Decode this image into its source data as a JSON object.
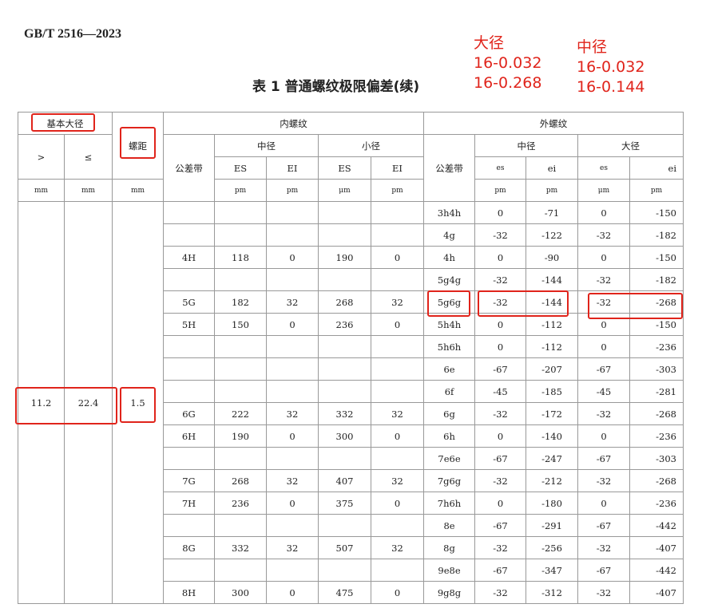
{
  "standard": "GB/T  2516—2023",
  "title": "表 1  普通螺纹极限偏差(续)",
  "notes": [
    {
      "heading": "大径",
      "lines": [
        "16-0.032",
        "16-0.268"
      ]
    },
    {
      "heading": "中径",
      "lines": [
        "16-0.032",
        "16-0.144"
      ]
    }
  ],
  "header": {
    "basic_diameter": "基本大径",
    "gt": ">",
    "le": "≤",
    "pitch": "螺距",
    "internal": "内螺纹",
    "external": "外螺纹",
    "tolerance_zone": "公差带",
    "pitch_dia": "中径",
    "minor_dia": "小径",
    "major_dia": "大径",
    "ES": "ES",
    "EI": "EI",
    "es": "es",
    "ei": "ei",
    "unit_mm": "mm",
    "unit_um": "pm",
    "unit_mu": "μm"
  },
  "group": {
    "gt": "11.2",
    "le": "22.4",
    "pitch": "1.5"
  },
  "rows": [
    {
      "inner": null,
      "outer": [
        "3h4h",
        "0",
        "-71",
        "0",
        "-150"
      ]
    },
    {
      "inner": null,
      "outer": [
        "4g",
        "-32",
        "-122",
        "-32",
        "-182"
      ]
    },
    {
      "inner": [
        "4H",
        "118",
        "0",
        "190",
        "0"
      ],
      "outer": [
        "4h",
        "0",
        "-90",
        "0",
        "-150"
      ]
    },
    {
      "inner": null,
      "outer": [
        "5g4g",
        "-32",
        "-144",
        "-32",
        "-182"
      ]
    },
    {
      "inner": [
        "5G",
        "182",
        "32",
        "268",
        "32"
      ],
      "outer": [
        "5g6g",
        "-32",
        "-144",
        "-32",
        "-268"
      ]
    },
    {
      "inner": [
        "5H",
        "150",
        "0",
        "236",
        "0"
      ],
      "outer": [
        "5h4h",
        "0",
        "-112",
        "0",
        "-150"
      ]
    },
    {
      "inner": null,
      "outer": [
        "5h6h",
        "0",
        "-112",
        "0",
        "-236"
      ]
    },
    {
      "inner": null,
      "outer": [
        "6e",
        "-67",
        "-207",
        "-67",
        "-303"
      ]
    },
    {
      "inner": null,
      "outer": [
        "6f",
        "-45",
        "-185",
        "-45",
        "-281"
      ]
    },
    {
      "inner": [
        "6G",
        "222",
        "32",
        "332",
        "32"
      ],
      "outer": [
        "6g",
        "-32",
        "-172",
        "-32",
        "-268"
      ]
    },
    {
      "inner": [
        "6H",
        "190",
        "0",
        "300",
        "0"
      ],
      "outer": [
        "6h",
        "0",
        "-140",
        "0",
        "-236"
      ]
    },
    {
      "inner": null,
      "outer": [
        "7e6e",
        "-67",
        "-247",
        "-67",
        "-303"
      ]
    },
    {
      "inner": [
        "7G",
        "268",
        "32",
        "407",
        "32"
      ],
      "outer": [
        "7g6g",
        "-32",
        "-212",
        "-32",
        "-268"
      ]
    },
    {
      "inner": [
        "7H",
        "236",
        "0",
        "375",
        "0"
      ],
      "outer": [
        "7h6h",
        "0",
        "-180",
        "0",
        "-236"
      ]
    },
    {
      "inner": null,
      "outer": [
        "8e",
        "-67",
        "-291",
        "-67",
        "-442"
      ]
    },
    {
      "inner": [
        "8G",
        "332",
        "32",
        "507",
        "32"
      ],
      "outer": [
        "8g",
        "-32",
        "-256",
        "-32",
        "-407"
      ]
    },
    {
      "inner": null,
      "outer": [
        "9e8e",
        "-67",
        "-347",
        "-67",
        "-442"
      ]
    },
    {
      "inner": [
        "8H",
        "300",
        "0",
        "475",
        "0"
      ],
      "outer": [
        "9g8g",
        "-32",
        "-312",
        "-32",
        "-407"
      ]
    }
  ],
  "highlight_color": "#e0241b"
}
